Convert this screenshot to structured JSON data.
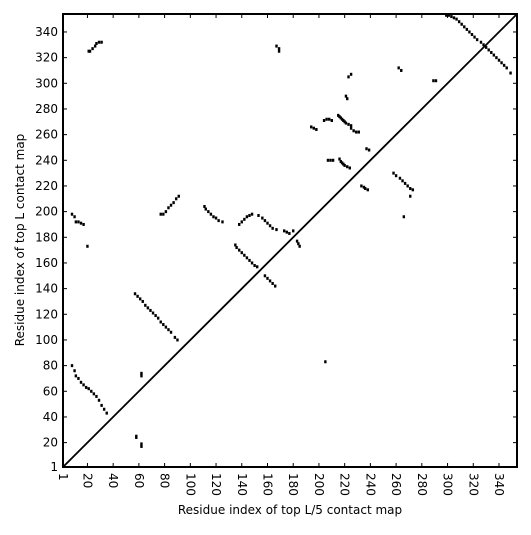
{
  "chart_data": {
    "type": "scatter",
    "xlabel": "Residue index of top L/5 contact map",
    "ylabel": "Residue index of top L contact map",
    "xlim": [
      1,
      354
    ],
    "ylim": [
      1,
      354
    ],
    "xticks": [
      1,
      20,
      40,
      60,
      80,
      100,
      120,
      140,
      160,
      180,
      200,
      220,
      240,
      260,
      280,
      300,
      320,
      340
    ],
    "yticks": [
      1,
      20,
      40,
      60,
      80,
      100,
      120,
      140,
      160,
      180,
      200,
      220,
      240,
      260,
      280,
      300,
      320,
      340
    ],
    "color": "#000000",
    "diagonal": true,
    "x": [
      21,
      22,
      24,
      26,
      27,
      29,
      31,
      8,
      10,
      11,
      13,
      15,
      17,
      20,
      8,
      10,
      11,
      13,
      15,
      17,
      19,
      21,
      23,
      25,
      27,
      29,
      31,
      33,
      35,
      58,
      58,
      62,
      62,
      62,
      62,
      57,
      59,
      61,
      63,
      65,
      67,
      69,
      71,
      73,
      75,
      77,
      79,
      81,
      83,
      85,
      88,
      90,
      77,
      79,
      81,
      83,
      85,
      87,
      89,
      91,
      111,
      112,
      114,
      116,
      118,
      120,
      122,
      125,
      135,
      136,
      138,
      140,
      142,
      144,
      146,
      148,
      150,
      152,
      138,
      140,
      142,
      144,
      146,
      148,
      153,
      156,
      158,
      160,
      162,
      164,
      167,
      158,
      160,
      162,
      164,
      166,
      167,
      169,
      169,
      173,
      175,
      177,
      180,
      183,
      184,
      185,
      194,
      196,
      198,
      204,
      206,
      208,
      210,
      207,
      209,
      211,
      205,
      215,
      216,
      217,
      218,
      219,
      220,
      221,
      223,
      225,
      216,
      217,
      218,
      219,
      220,
      222,
      224,
      221,
      222,
      223,
      225,
      225,
      227,
      229,
      231,
      233,
      235,
      236,
      238,
      237,
      239,
      258,
      260,
      263,
      265,
      267,
      269,
      271,
      273,
      271,
      262,
      264,
      266,
      289,
      291,
      299,
      301,
      303,
      305,
      307,
      309,
      311,
      313,
      315,
      317,
      319,
      321,
      323,
      326,
      328,
      330,
      332,
      334,
      336,
      338,
      340,
      342,
      344,
      346,
      349
    ],
    "values": [
      325,
      325,
      327,
      329,
      331,
      332,
      332,
      198,
      196,
      192,
      192,
      191,
      190,
      173,
      80,
      76,
      72,
      70,
      67,
      65,
      63,
      62,
      60,
      58,
      56,
      53,
      49,
      46,
      43,
      25,
      24,
      19,
      17,
      74,
      72,
      136,
      134,
      132,
      130,
      127,
      125,
      123,
      121,
      119,
      117,
      114,
      112,
      110,
      108,
      106,
      102,
      100,
      198,
      198,
      200,
      203,
      205,
      207,
      210,
      212,
      204,
      202,
      200,
      198,
      196,
      195,
      193,
      192,
      174,
      172,
      170,
      168,
      166,
      164,
      162,
      160,
      158,
      157,
      190,
      192,
      194,
      196,
      197,
      198,
      197,
      195,
      193,
      191,
      189,
      187,
      186,
      150,
      148,
      146,
      144,
      142,
      329,
      327,
      325,
      185,
      184,
      183,
      185,
      177,
      175,
      173,
      266,
      265,
      264,
      271,
      272,
      272,
      271,
      240,
      240,
      240,
      83,
      275,
      274,
      273,
      272,
      271,
      270,
      269,
      268,
      267,
      241,
      239,
      238,
      237,
      236,
      235,
      234,
      290,
      288,
      305,
      307,
      265,
      263,
      262,
      262,
      220,
      219,
      218,
      217,
      249,
      248,
      230,
      228,
      226,
      224,
      222,
      220,
      218,
      217,
      212,
      312,
      310,
      196,
      302,
      302,
      353,
      353,
      352,
      351,
      350,
      348,
      346,
      344,
      342,
      340,
      338,
      336,
      334,
      332,
      330,
      328,
      326,
      324,
      322,
      320,
      318,
      316,
      314,
      312,
      308
    ]
  }
}
